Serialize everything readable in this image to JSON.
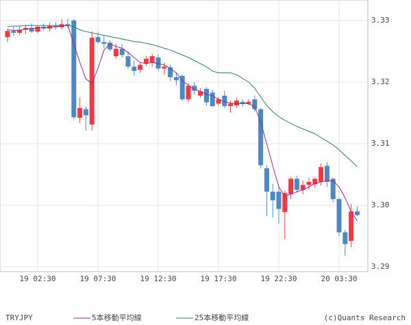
{
  "chart_data": {
    "type": "candlestick",
    "title": "TRYJPY",
    "credit": "(c)Quants Research",
    "up_color": "#ea3c45",
    "down_color": "#4f88be",
    "grid": true,
    "ylim": [
      3.28922,
      3.33333
    ],
    "xlim": [
      -1.25,
      59.77
    ],
    "yticks": [
      {
        "value": 3.29,
        "label": "3.29"
      },
      {
        "value": 3.3,
        "label": "3.30"
      },
      {
        "value": 3.31,
        "label": "3.31"
      },
      {
        "value": 3.32,
        "label": "3.32"
      },
      {
        "value": 3.33,
        "label": "3.33"
      }
    ],
    "xticks": [
      {
        "value": 5,
        "label": "19 02:30"
      },
      {
        "value": 15,
        "label": "19 07:30"
      },
      {
        "value": 25,
        "label": "19 12:30"
      },
      {
        "value": 35,
        "label": "19 17:30"
      },
      {
        "value": 45,
        "label": "19 22:30"
      },
      {
        "value": 55,
        "label": "20 03:30"
      }
    ],
    "open": [
      3.3273,
      3.3283,
      3.328,
      3.3285,
      3.3288,
      3.3282,
      3.329,
      3.3287,
      3.3291,
      3.3289,
      3.3294,
      3.33,
      3.3142,
      3.3156,
      3.3131,
      3.3273,
      3.3265,
      3.3264,
      3.3242,
      3.3254,
      3.3242,
      3.3225,
      3.322,
      3.323,
      3.3231,
      3.324,
      3.3222,
      3.3224,
      3.3208,
      3.321,
      3.3172,
      3.3194,
      3.3178,
      3.3189,
      3.3183,
      3.3165,
      3.3178,
      3.3161,
      3.3162,
      3.3168,
      3.3165,
      3.3172,
      3.3156,
      3.306,
      3.3022,
      3.3022,
      3.2989,
      3.3018,
      3.3043,
      3.3025,
      3.3033,
      3.3034,
      3.3038,
      3.3064,
      3.3043,
      3.301,
      3.2956,
      3.2942,
      3.299
    ],
    "high": [
      3.3287,
      3.329,
      3.3291,
      3.3293,
      3.3295,
      3.3292,
      3.3295,
      3.3296,
      3.3298,
      3.3302,
      3.3303,
      3.3302,
      3.3175,
      3.316,
      3.3282,
      3.3282,
      3.3275,
      3.3268,
      3.3262,
      3.3262,
      3.325,
      3.3235,
      3.3232,
      3.3242,
      3.3246,
      3.3245,
      3.3232,
      3.3228,
      3.3215,
      3.3212,
      3.3198,
      3.32,
      3.319,
      3.3192,
      3.3188,
      3.3176,
      3.3186,
      3.317,
      3.3174,
      3.3172,
      3.3172,
      3.3178,
      3.3158,
      3.3065,
      3.3035,
      3.303,
      3.3024,
      3.3046,
      3.3048,
      3.304,
      3.3045,
      3.3045,
      3.3068,
      3.307,
      3.3045,
      3.3012,
      3.296,
      3.3002,
      3.2998
    ],
    "low": [
      3.3265,
      3.3275,
      3.3276,
      3.3278,
      3.328,
      3.3279,
      3.3283,
      3.3282,
      3.3285,
      3.3286,
      3.3288,
      3.314,
      3.3133,
      3.3121,
      3.3121,
      3.3262,
      3.3255,
      3.325,
      3.3238,
      3.324,
      3.3222,
      3.321,
      3.3215,
      3.3226,
      3.3225,
      3.3218,
      3.3212,
      3.3202,
      3.3195,
      3.317,
      3.3168,
      3.318,
      3.3175,
      3.3162,
      3.316,
      3.3162,
      3.3158,
      3.315,
      3.3158,
      3.316,
      3.3162,
      3.3152,
      3.306,
      3.2982,
      3.298,
      3.297,
      3.2945,
      3.301,
      3.302,
      3.3018,
      3.3025,
      3.3028,
      3.3032,
      3.303,
      3.3005,
      3.295,
      3.2918,
      3.2932,
      3.2982
    ],
    "close": [
      3.3283,
      3.328,
      3.3285,
      3.3288,
      3.3282,
      3.329,
      3.3287,
      3.3291,
      3.3289,
      3.3294,
      3.3291,
      3.3143,
      3.3158,
      3.3146,
      3.3272,
      3.3265,
      3.3262,
      3.3253,
      3.3254,
      3.3244,
      3.3225,
      3.3218,
      3.3228,
      3.3238,
      3.3242,
      3.3222,
      3.3225,
      3.3208,
      3.3203,
      3.3172,
      3.3194,
      3.3186,
      3.3185,
      3.3167,
      3.3161,
      3.3172,
      3.3161,
      3.3165,
      3.317,
      3.3165,
      3.3168,
      3.3156,
      3.3065,
      3.3022,
      3.3008,
      3.2994,
      3.302,
      3.3043,
      3.3025,
      3.3033,
      3.3038,
      3.3043,
      3.3062,
      3.3038,
      3.301,
      3.2956,
      3.2937,
      3.299,
      3.2984
    ],
    "series": [
      {
        "name": "5本移動平均線",
        "color": "#8e2a8e",
        "values": [
          3.3285,
          3.3284,
          3.3284,
          3.3286,
          3.3287,
          3.3288,
          3.3288,
          3.3289,
          3.329,
          3.3291,
          3.3292,
          3.3262,
          3.3232,
          3.3205,
          3.3198,
          3.3222,
          3.3252,
          3.3262,
          3.3258,
          3.3255,
          3.3248,
          3.324,
          3.3232,
          3.323,
          3.3232,
          3.323,
          3.3228,
          3.3222,
          3.3215,
          3.3202,
          3.3195,
          3.3188,
          3.3185,
          3.318,
          3.3178,
          3.3172,
          3.3168,
          3.3166,
          3.3165,
          3.3165,
          3.3165,
          3.316,
          3.3135,
          3.31,
          3.3064,
          3.303,
          3.3015,
          3.3018,
          3.3022,
          3.3025,
          3.303,
          3.3035,
          3.3038,
          3.304,
          3.304,
          3.303,
          3.3012,
          3.299,
          3.2975
        ]
      },
      {
        "name": "25本移動平均線",
        "color": "#2f7a6a",
        "values": [
          3.329,
          3.3291,
          3.3291,
          3.3292,
          3.3292,
          3.3292,
          3.3292,
          3.3292,
          3.3292,
          3.3292,
          3.3292,
          3.329,
          3.3285,
          3.3282,
          3.328,
          3.3278,
          3.3276,
          3.3274,
          3.3272,
          3.327,
          3.3268,
          3.3266,
          3.3265,
          3.3263,
          3.3261,
          3.3258,
          3.3255,
          3.3252,
          3.3248,
          3.3244,
          3.324,
          3.3235,
          3.323,
          3.3225,
          3.3218,
          3.3215,
          3.3215,
          3.3215,
          3.3212,
          3.3206,
          3.32,
          3.319,
          3.3176,
          3.3162,
          3.3152,
          3.3144,
          3.3138,
          3.3133,
          3.3128,
          3.3124,
          3.312,
          3.3116,
          3.311,
          3.3104,
          3.3098,
          3.309,
          3.3081,
          3.3072,
          3.3063
        ]
      }
    ]
  }
}
